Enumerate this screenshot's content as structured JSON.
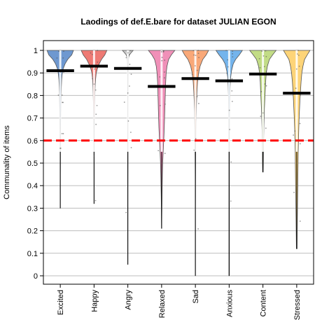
{
  "chart_data": {
    "type": "pirate",
    "title": "Laodings of def.E.bare for dataset JULIAN EGON",
    "xlabel": "",
    "ylabel": "Communality of items",
    "ylim": [
      0,
      1
    ],
    "yticks": [
      0,
      0.1,
      0.2,
      0.3,
      0.4,
      0.5,
      0.6,
      0.7,
      0.8,
      0.9,
      1
    ],
    "ytick_labels": [
      "0",
      "0.1",
      "0.2",
      "0.3",
      "0.4",
      "0.5",
      "0.6",
      "0.7",
      "0.8",
      "0.9",
      "1"
    ],
    "grid": true,
    "reference_line": {
      "value": 0.6,
      "color": "#ff0000",
      "style": "dashed"
    },
    "categories": [
      "Excited",
      "Happy",
      "Angry",
      "Relaxed",
      "Sad",
      "Anxious",
      "Content",
      "Stressed"
    ],
    "colors": [
      "#6e98d0",
      "#ee7a74",
      "#c9c9c9",
      "#f090b8",
      "#f9a878",
      "#74b4ec",
      "#c2dc86",
      "#fdd478"
    ],
    "series": [
      {
        "category": "Excited",
        "mean": 0.91,
        "min": 0.3,
        "max": 1.0,
        "density": [
          [
            1.0,
            0.98
          ],
          [
            0.98,
            0.85
          ],
          [
            0.96,
            0.55
          ],
          [
            0.94,
            0.35
          ],
          [
            0.92,
            0.22
          ],
          [
            0.9,
            0.15
          ],
          [
            0.87,
            0.1
          ],
          [
            0.84,
            0.08
          ],
          [
            0.8,
            0.06
          ],
          [
            0.75,
            0.045
          ],
          [
            0.7,
            0.03
          ],
          [
            0.65,
            0.022
          ],
          [
            0.6,
            0.016
          ],
          [
            0.55,
            0.011
          ],
          [
            0.5,
            0.008
          ],
          [
            0.45,
            0.005
          ],
          [
            0.4,
            0.004
          ],
          [
            0.35,
            0.003
          ],
          [
            0.3,
            0.002
          ]
        ]
      },
      {
        "category": "Happy",
        "mean": 0.93,
        "min": 0.32,
        "max": 1.0,
        "density": [
          [
            1.0,
            0.95
          ],
          [
            0.98,
            0.8
          ],
          [
            0.96,
            0.55
          ],
          [
            0.94,
            0.38
          ],
          [
            0.92,
            0.25
          ],
          [
            0.9,
            0.16
          ],
          [
            0.87,
            0.11
          ],
          [
            0.84,
            0.08
          ],
          [
            0.8,
            0.06
          ],
          [
            0.76,
            0.045
          ],
          [
            0.72,
            0.03
          ],
          [
            0.68,
            0.022
          ],
          [
            0.65,
            0.016
          ],
          [
            0.6,
            0.011
          ],
          [
            0.55,
            0.008
          ],
          [
            0.5,
            0.006
          ],
          [
            0.45,
            0.004
          ],
          [
            0.4,
            0.003
          ],
          [
            0.32,
            0.002
          ]
        ]
      },
      {
        "category": "Angry",
        "mean": 0.92,
        "min": 0.05,
        "max": 1.0,
        "density": [
          [
            1.0,
            0.4
          ],
          [
            0.99,
            0.25
          ],
          [
            0.98,
            0.12
          ],
          [
            0.97,
            0.06
          ],
          [
            0.95,
            0.035
          ],
          [
            0.93,
            0.025
          ],
          [
            0.9,
            0.018
          ],
          [
            0.85,
            0.014
          ],
          [
            0.8,
            0.011
          ],
          [
            0.7,
            0.009
          ],
          [
            0.6,
            0.008
          ],
          [
            0.5,
            0.007
          ],
          [
            0.4,
            0.006
          ],
          [
            0.3,
            0.005
          ],
          [
            0.2,
            0.004
          ],
          [
            0.1,
            0.003
          ],
          [
            0.05,
            0.002
          ]
        ]
      },
      {
        "category": "Relaxed",
        "mean": 0.84,
        "min": 0.21,
        "max": 1.0,
        "density": [
          [
            1.0,
            0.98
          ],
          [
            0.98,
            0.72
          ],
          [
            0.96,
            0.52
          ],
          [
            0.93,
            0.4
          ],
          [
            0.9,
            0.34
          ],
          [
            0.86,
            0.3
          ],
          [
            0.82,
            0.28
          ],
          [
            0.78,
            0.26
          ],
          [
            0.74,
            0.24
          ],
          [
            0.7,
            0.22
          ],
          [
            0.66,
            0.2
          ],
          [
            0.62,
            0.17
          ],
          [
            0.58,
            0.14
          ],
          [
            0.54,
            0.11
          ],
          [
            0.5,
            0.08
          ],
          [
            0.45,
            0.06
          ],
          [
            0.4,
            0.045
          ],
          [
            0.35,
            0.03
          ],
          [
            0.3,
            0.02
          ],
          [
            0.25,
            0.012
          ],
          [
            0.21,
            0.006
          ]
        ]
      },
      {
        "category": "Sad",
        "mean": 0.875,
        "min": 0.0,
        "max": 1.0,
        "density": [
          [
            1.0,
            0.98
          ],
          [
            0.98,
            0.8
          ],
          [
            0.96,
            0.55
          ],
          [
            0.93,
            0.35
          ],
          [
            0.9,
            0.24
          ],
          [
            0.86,
            0.16
          ],
          [
            0.82,
            0.12
          ],
          [
            0.78,
            0.09
          ],
          [
            0.74,
            0.07
          ],
          [
            0.7,
            0.055
          ],
          [
            0.65,
            0.04
          ],
          [
            0.6,
            0.03
          ],
          [
            0.55,
            0.022
          ],
          [
            0.5,
            0.016
          ],
          [
            0.45,
            0.012
          ],
          [
            0.4,
            0.009
          ],
          [
            0.35,
            0.007
          ],
          [
            0.3,
            0.006
          ],
          [
            0.2,
            0.005
          ],
          [
            0.1,
            0.004
          ],
          [
            0.0,
            0.003
          ]
        ]
      },
      {
        "category": "Anxious",
        "mean": 0.865,
        "min": 0.0,
        "max": 1.0,
        "density": [
          [
            1.0,
            0.98
          ],
          [
            0.98,
            0.75
          ],
          [
            0.96,
            0.48
          ],
          [
            0.94,
            0.3
          ],
          [
            0.91,
            0.18
          ],
          [
            0.88,
            0.11
          ],
          [
            0.84,
            0.07
          ],
          [
            0.8,
            0.05
          ],
          [
            0.75,
            0.035
          ],
          [
            0.7,
            0.025
          ],
          [
            0.6,
            0.018
          ],
          [
            0.5,
            0.014
          ],
          [
            0.4,
            0.012
          ],
          [
            0.3,
            0.012
          ],
          [
            0.2,
            0.012
          ],
          [
            0.1,
            0.012
          ],
          [
            0.0,
            0.012
          ]
        ]
      },
      {
        "category": "Content",
        "mean": 0.895,
        "min": 0.46,
        "max": 1.0,
        "density": [
          [
            1.0,
            0.98
          ],
          [
            0.98,
            0.72
          ],
          [
            0.96,
            0.48
          ],
          [
            0.93,
            0.33
          ],
          [
            0.9,
            0.25
          ],
          [
            0.86,
            0.2
          ],
          [
            0.82,
            0.17
          ],
          [
            0.78,
            0.14
          ],
          [
            0.74,
            0.11
          ],
          [
            0.7,
            0.09
          ],
          [
            0.66,
            0.07
          ],
          [
            0.62,
            0.055
          ],
          [
            0.58,
            0.045
          ],
          [
            0.55,
            0.04
          ],
          [
            0.52,
            0.035
          ],
          [
            0.49,
            0.03
          ],
          [
            0.46,
            0.02
          ]
        ]
      },
      {
        "category": "Stressed",
        "mean": 0.81,
        "min": 0.12,
        "max": 1.0,
        "density": [
          [
            1.0,
            0.98
          ],
          [
            0.98,
            0.78
          ],
          [
            0.96,
            0.58
          ],
          [
            0.93,
            0.46
          ],
          [
            0.9,
            0.38
          ],
          [
            0.86,
            0.32
          ],
          [
            0.82,
            0.28
          ],
          [
            0.78,
            0.24
          ],
          [
            0.74,
            0.21
          ],
          [
            0.7,
            0.18
          ],
          [
            0.65,
            0.15
          ],
          [
            0.6,
            0.13
          ],
          [
            0.55,
            0.11
          ],
          [
            0.5,
            0.1
          ],
          [
            0.45,
            0.09
          ],
          [
            0.4,
            0.08
          ],
          [
            0.35,
            0.07
          ],
          [
            0.3,
            0.06
          ],
          [
            0.25,
            0.05
          ],
          [
            0.2,
            0.04
          ],
          [
            0.15,
            0.03
          ],
          [
            0.12,
            0.025
          ]
        ]
      }
    ],
    "legend": "none"
  }
}
